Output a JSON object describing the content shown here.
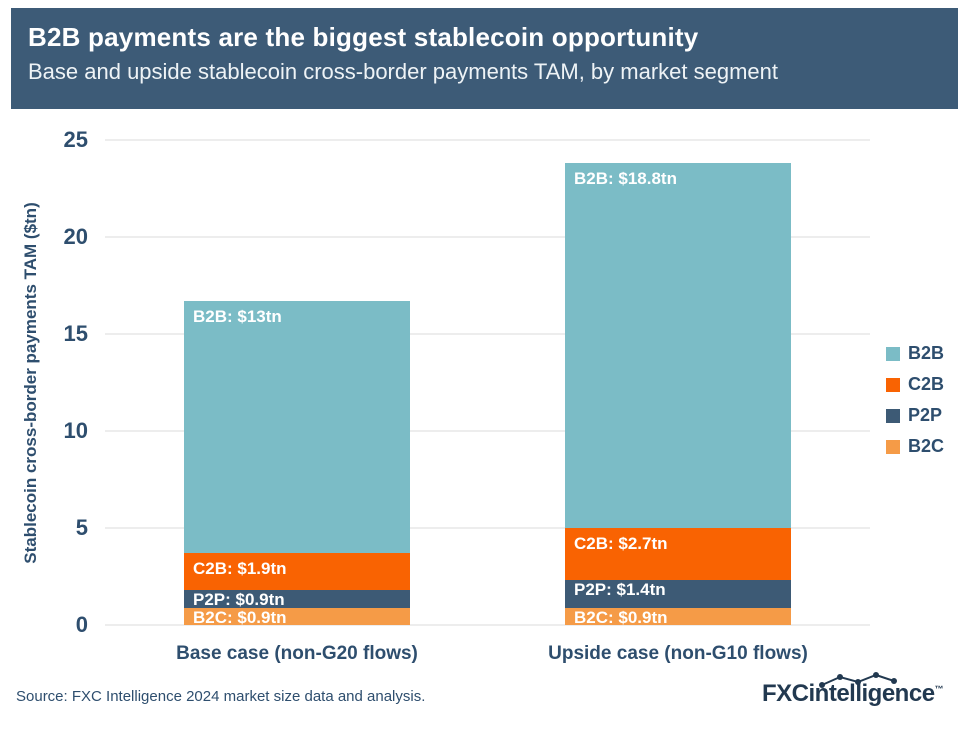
{
  "header": {
    "title": "B2B payments are the biggest stablecoin opportunity",
    "subtitle": "Base and upside stablecoin cross-border payments TAM, by market segment"
  },
  "chart_data": {
    "type": "bar",
    "subtype": "stacked",
    "title": "B2B payments are the biggest stablecoin opportunity",
    "subtitle": "Base and upside stablecoin cross-border payments TAM, by market segment",
    "ylabel": "Stablecoin cross-border payments TAM ($tn)",
    "xlabel": "",
    "ylim": [
      0,
      25
    ],
    "yticks": [
      0,
      5,
      10,
      15,
      20,
      25
    ],
    "grid": "horizontal",
    "legend_position": "right",
    "categories": [
      "Base case (non-G20 flows)",
      "Upside case (non-G10 flows)"
    ],
    "series": [
      {
        "name": "B2C",
        "color": "#f59b47",
        "values": [
          0.9,
          0.9
        ],
        "segment_labels": [
          "B2C: $0.9tn",
          "B2C: $0.9tn"
        ]
      },
      {
        "name": "P2P",
        "color": "#3d5a75",
        "values": [
          0.9,
          1.4
        ],
        "segment_labels": [
          "P2P: $0.9tn",
          "P2P: $1.4tn"
        ]
      },
      {
        "name": "C2B",
        "color": "#f96302",
        "values": [
          1.9,
          2.7
        ],
        "segment_labels": [
          "C2B: $1.9tn",
          "C2B: $2.7tn"
        ]
      },
      {
        "name": "B2B",
        "color": "#7bbcc6",
        "values": [
          13,
          18.8
        ],
        "segment_labels": [
          "B2B: $13tn",
          "B2B: $18.8tn"
        ]
      }
    ],
    "totals": [
      16.7,
      23.8
    ],
    "legend": [
      {
        "label": "B2B",
        "color": "#7bbcc6"
      },
      {
        "label": "C2B",
        "color": "#f96302"
      },
      {
        "label": "P2P",
        "color": "#3d5a75"
      },
      {
        "label": "B2C",
        "color": "#f59b47"
      }
    ]
  },
  "footer": {
    "source": "Source: FXC Intelligence 2024 market size data and analysis.",
    "logo": {
      "fxc": "FXC",
      "rest": "intelligence",
      "tm": "™"
    }
  },
  "colors": {
    "banner_bg": "#3d5b77",
    "navy_text": "#2e4e6e",
    "gridline": "#ededed",
    "logo_navy": "#223950",
    "bar_label": "#ffffff"
  }
}
